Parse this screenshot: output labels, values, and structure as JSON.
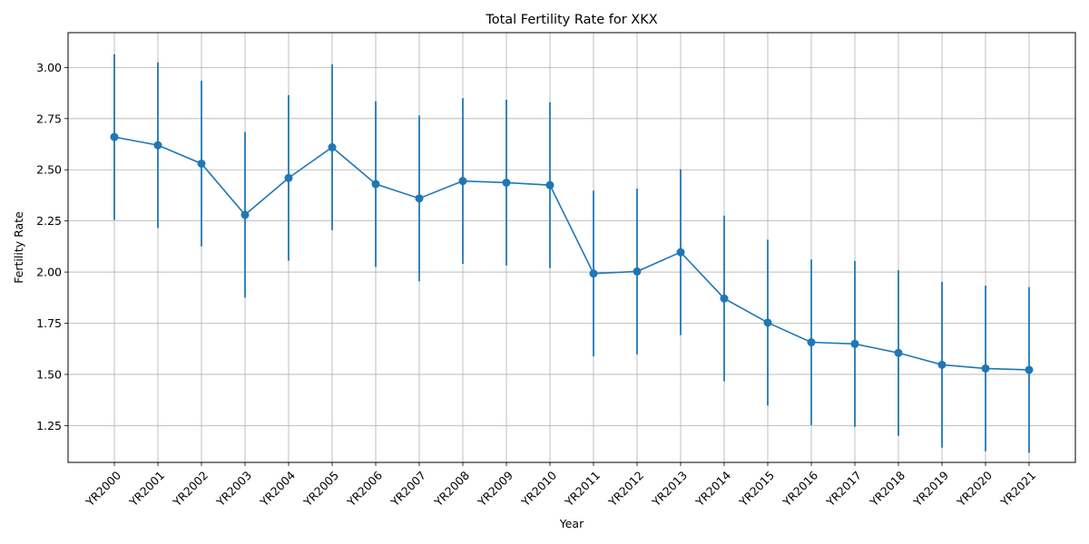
{
  "chart_data": {
    "type": "line",
    "title": "Total Fertility Rate for XKX",
    "xlabel": "Year",
    "ylabel": "Fertility Rate",
    "categories": [
      "YR2000",
      "YR2001",
      "YR2002",
      "YR2003",
      "YR2004",
      "YR2005",
      "YR2006",
      "YR2007",
      "YR2008",
      "YR2009",
      "YR2010",
      "YR2011",
      "YR2012",
      "YR2013",
      "YR2014",
      "YR2015",
      "YR2016",
      "YR2017",
      "YR2018",
      "YR2019",
      "YR2020",
      "YR2021"
    ],
    "series": [
      {
        "values": [
          2.66,
          2.62,
          2.53,
          2.28,
          2.46,
          2.61,
          2.43,
          2.36,
          2.445,
          2.437,
          2.425,
          1.993,
          2.003,
          2.097,
          1.871,
          1.753,
          1.657,
          1.649,
          1.605,
          1.547,
          1.529,
          1.522
        ],
        "error": [
          0.405,
          0.405,
          0.405,
          0.405,
          0.405,
          0.405,
          0.405,
          0.405,
          0.405,
          0.405,
          0.405,
          0.405,
          0.405,
          0.405,
          0.405,
          0.405,
          0.405,
          0.405,
          0.405,
          0.405,
          0.405,
          0.405
        ],
        "color": "#1f77b4"
      }
    ],
    "yticks": [
      1.25,
      1.5,
      1.75,
      2.0,
      2.25,
      2.5,
      2.75,
      3.0
    ],
    "ytick_labels": [
      "1.25",
      "1.50",
      "1.75",
      "2.00",
      "2.25",
      "2.50",
      "2.75",
      "3.00"
    ],
    "ylim": [
      1.07,
      3.17
    ],
    "grid": true,
    "legend": "none"
  }
}
